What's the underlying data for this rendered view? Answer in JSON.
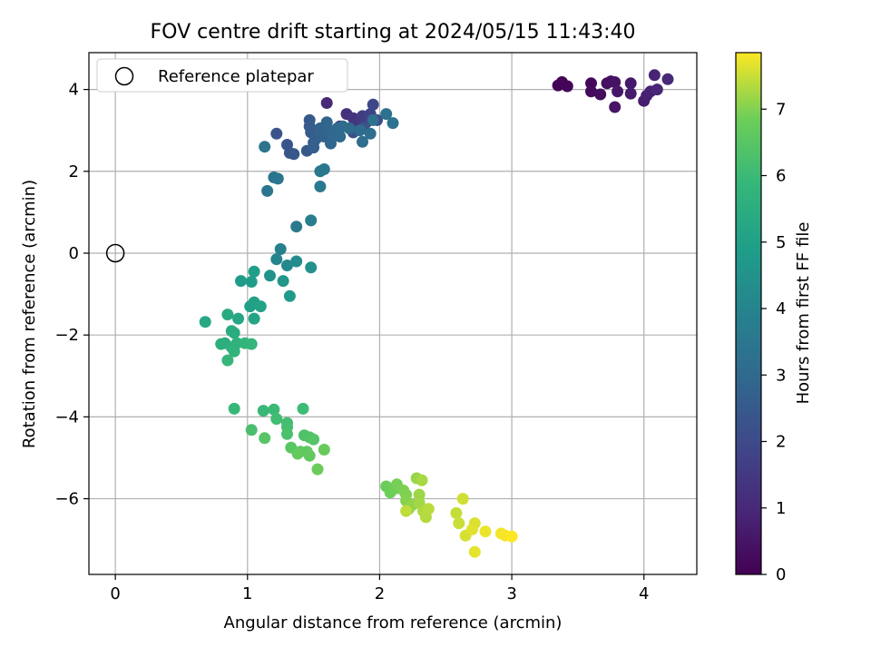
{
  "chart_data": {
    "type": "scatter",
    "title": "FOV centre drift starting at 2024/05/15 11:43:40",
    "xlabel": "Angular distance from reference (arcmin)",
    "ylabel": "Rotation from reference (arcmin)",
    "xlim": [
      -0.2,
      4.4
    ],
    "ylim": [
      -7.85,
      4.9
    ],
    "xticks": [
      0,
      1,
      2,
      3,
      4
    ],
    "yticks": [
      -6,
      -4,
      -2,
      0,
      2,
      4
    ],
    "xtick_labels": [
      "0",
      "1",
      "2",
      "3",
      "4"
    ],
    "ytick_labels": [
      "−6",
      "−4",
      "−2",
      "0",
      "2",
      "4"
    ],
    "grid": true,
    "legend": {
      "position": "top-left",
      "entries": [
        "Reference platepar"
      ]
    },
    "colormap": "viridis",
    "colorbar": {
      "label": "Hours from first FF file",
      "min": 0,
      "max": 7.85,
      "ticks": [
        0,
        1,
        2,
        3,
        4,
        5,
        6,
        7
      ],
      "tick_labels": [
        "0",
        "1",
        "2",
        "3",
        "4",
        "5",
        "6",
        "7"
      ]
    },
    "reference_point": {
      "x": 0,
      "y": 0
    },
    "series": [
      {
        "hours_range": [
          0.0,
          1.0
        ],
        "points": [
          [
            3.35,
            4.1
          ],
          [
            3.38,
            4.18
          ],
          [
            3.42,
            4.08
          ],
          [
            3.6,
            4.15
          ],
          [
            3.6,
            3.95
          ],
          [
            3.67,
            3.88
          ],
          [
            3.72,
            4.15
          ],
          [
            3.75,
            4.2
          ],
          [
            3.78,
            4.18
          ],
          [
            3.78,
            3.57
          ],
          [
            3.8,
            3.95
          ],
          [
            3.9,
            4.15
          ],
          [
            3.9,
            3.9
          ],
          [
            4.0,
            3.72
          ],
          [
            4.02,
            3.85
          ],
          [
            4.05,
            3.95
          ],
          [
            4.08,
            4.35
          ],
          [
            4.1,
            4.0
          ],
          [
            4.18,
            4.25
          ]
        ]
      },
      {
        "hours_range": [
          1.0,
          2.3
        ],
        "points": [
          [
            1.6,
            3.67
          ],
          [
            1.7,
            3.1
          ],
          [
            1.75,
            3.4
          ],
          [
            1.8,
            3.3
          ],
          [
            1.83,
            3.15
          ],
          [
            1.87,
            3.35
          ],
          [
            1.9,
            3.2
          ],
          [
            1.93,
            3.4
          ],
          [
            1.95,
            3.63
          ],
          [
            1.98,
            3.25
          ],
          [
            1.8,
            2.95
          ],
          [
            1.88,
            3.05
          ]
        ]
      },
      {
        "hours_range": [
          2.3,
          3.6
        ],
        "points": [
          [
            1.22,
            2.92
          ],
          [
            1.3,
            2.65
          ],
          [
            1.32,
            2.45
          ],
          [
            1.35,
            2.42
          ],
          [
            1.45,
            2.5
          ],
          [
            1.47,
            3.25
          ],
          [
            1.47,
            3.1
          ],
          [
            1.48,
            2.95
          ],
          [
            1.5,
            2.7
          ],
          [
            1.5,
            2.58
          ],
          [
            1.52,
            2.8
          ],
          [
            1.55,
            2.95
          ],
          [
            1.55,
            3.05
          ],
          [
            1.58,
            2.85
          ],
          [
            1.6,
            3.2
          ],
          [
            1.62,
            3.0
          ],
          [
            1.63,
            2.68
          ],
          [
            1.65,
            2.9
          ],
          [
            1.68,
            3.05
          ],
          [
            1.7,
            2.85
          ],
          [
            1.72,
            3.1
          ],
          [
            1.77,
            3.05
          ],
          [
            1.85,
            3.0
          ],
          [
            1.87,
            2.72
          ],
          [
            1.93,
            2.92
          ],
          [
            1.95,
            3.25
          ],
          [
            2.05,
            3.4
          ],
          [
            2.1,
            3.18
          ],
          [
            1.13,
            2.6
          ],
          [
            1.2,
            1.85
          ],
          [
            1.23,
            1.82
          ],
          [
            1.15,
            1.52
          ],
          [
            1.55,
            2.0
          ],
          [
            1.58,
            2.05
          ],
          [
            1.55,
            1.63
          ]
        ]
      },
      {
        "hours_range": [
          3.6,
          4.8
        ],
        "points": [
          [
            1.37,
            0.65
          ],
          [
            1.48,
            0.8
          ],
          [
            1.25,
            0.1
          ],
          [
            1.22,
            -0.15
          ],
          [
            1.3,
            -0.3
          ],
          [
            1.37,
            -0.2
          ],
          [
            1.48,
            -0.35
          ],
          [
            1.17,
            -0.55
          ],
          [
            1.27,
            -0.68
          ],
          [
            1.32,
            -1.05
          ]
        ]
      },
      {
        "hours_range": [
          4.8,
          5.9
        ],
        "points": [
          [
            0.95,
            -0.68
          ],
          [
            1.03,
            -0.7
          ],
          [
            1.05,
            -0.45
          ],
          [
            1.02,
            -1.3
          ],
          [
            1.05,
            -1.2
          ],
          [
            1.1,
            -1.3
          ],
          [
            1.05,
            -1.6
          ],
          [
            0.93,
            -1.6
          ],
          [
            0.68,
            -1.68
          ],
          [
            0.85,
            -1.5
          ],
          [
            0.88,
            -1.9
          ],
          [
            0.9,
            -1.95
          ],
          [
            0.83,
            -2.2
          ],
          [
            0.8,
            -2.22
          ],
          [
            0.88,
            -2.3
          ],
          [
            0.92,
            -2.2
          ],
          [
            0.9,
            -2.4
          ],
          [
            0.98,
            -2.2
          ],
          [
            1.03,
            -2.22
          ],
          [
            0.85,
            -2.62
          ]
        ]
      },
      {
        "hours_range": [
          5.9,
          6.8
        ],
        "points": [
          [
            0.9,
            -3.8
          ],
          [
            1.12,
            -3.85
          ],
          [
            1.2,
            -3.82
          ],
          [
            1.42,
            -3.8
          ],
          [
            1.22,
            -4.05
          ],
          [
            1.3,
            -4.15
          ],
          [
            1.3,
            -4.25
          ],
          [
            1.03,
            -4.32
          ],
          [
            1.3,
            -4.42
          ],
          [
            1.43,
            -4.45
          ],
          [
            1.47,
            -4.5
          ],
          [
            1.5,
            -4.55
          ],
          [
            1.13,
            -4.52
          ],
          [
            1.33,
            -4.75
          ],
          [
            1.4,
            -4.85
          ],
          [
            1.45,
            -4.85
          ],
          [
            1.47,
            -4.95
          ],
          [
            1.38,
            -4.9
          ],
          [
            1.58,
            -4.8
          ],
          [
            1.53,
            -5.28
          ]
        ]
      },
      {
        "hours_range": [
          6.8,
          7.85
        ],
        "points": [
          [
            2.05,
            -5.7
          ],
          [
            2.08,
            -5.85
          ],
          [
            2.12,
            -5.75
          ],
          [
            2.13,
            -5.65
          ],
          [
            2.18,
            -5.8
          ],
          [
            2.2,
            -5.9
          ],
          [
            2.2,
            -6.05
          ],
          [
            2.22,
            -6.25
          ],
          [
            2.25,
            -6.15
          ],
          [
            2.28,
            -5.5
          ],
          [
            2.3,
            -5.9
          ],
          [
            2.3,
            -6.1
          ],
          [
            2.32,
            -5.55
          ],
          [
            2.33,
            -6.3
          ],
          [
            2.35,
            -6.45
          ],
          [
            2.37,
            -6.25
          ],
          [
            2.2,
            -6.3
          ],
          [
            2.58,
            -6.35
          ],
          [
            2.6,
            -6.6
          ],
          [
            2.63,
            -6.0
          ],
          [
            2.65,
            -6.9
          ],
          [
            2.72,
            -6.6
          ],
          [
            2.7,
            -6.75
          ],
          [
            2.72,
            -7.3
          ],
          [
            2.8,
            -6.8
          ],
          [
            2.92,
            -6.85
          ],
          [
            2.95,
            -6.9
          ],
          [
            3.0,
            -6.92
          ]
        ]
      }
    ]
  }
}
